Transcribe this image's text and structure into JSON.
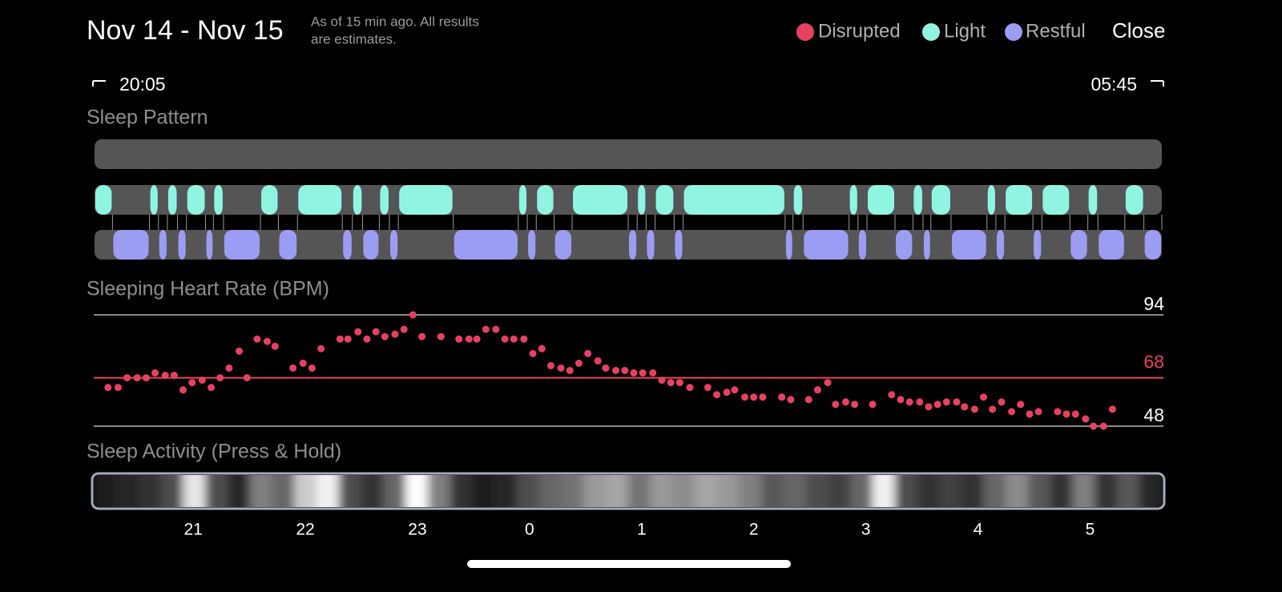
{
  "header": {
    "title": "Nov 14 - Nov 15",
    "note_lines": [
      "As of 15 min ago. All results",
      "are estimates."
    ],
    "close": "Close"
  },
  "range": {
    "start": "20:05",
    "end": "05:45"
  },
  "chart_data": [
    {
      "type": "timeline",
      "title": "Sleep Pattern",
      "xlim": [
        0.12,
        9.64
      ],
      "series": [
        {
          "name": "Disrupted",
          "color": "#e8415f",
          "intervals": []
        },
        {
          "name": "Light",
          "color": "#8ff5e0",
          "intervals": [
            [
              0.12,
              0.28
            ],
            [
              0.61,
              0.69
            ],
            [
              0.77,
              0.86
            ],
            [
              0.94,
              1.11
            ],
            [
              1.18,
              1.27
            ],
            [
              1.6,
              1.76
            ],
            [
              1.93,
              2.33
            ],
            [
              2.42,
              2.51
            ],
            [
              2.66,
              2.75
            ],
            [
              2.83,
              3.32
            ],
            [
              3.9,
              3.98
            ],
            [
              4.06,
              4.22
            ],
            [
              4.38,
              4.88
            ],
            [
              4.96,
              5.04
            ],
            [
              5.12,
              5.29
            ],
            [
              5.37,
              6.28
            ],
            [
              6.35,
              6.44
            ],
            [
              6.85,
              6.93
            ],
            [
              7.01,
              7.26
            ],
            [
              7.42,
              7.51
            ],
            [
              7.58,
              7.76
            ],
            [
              8.08,
              8.16
            ],
            [
              8.24,
              8.49
            ],
            [
              8.57,
              8.82
            ],
            [
              8.98,
              9.07
            ],
            [
              9.31,
              9.48
            ]
          ]
        },
        {
          "name": "Restful",
          "color": "#9b9df2",
          "intervals": [
            [
              0.28,
              0.61
            ],
            [
              0.69,
              0.77
            ],
            [
              0.86,
              0.94
            ],
            [
              1.11,
              1.18
            ],
            [
              1.27,
              1.6
            ],
            [
              1.76,
              1.93
            ],
            [
              2.33,
              2.42
            ],
            [
              2.51,
              2.66
            ],
            [
              2.75,
              2.83
            ],
            [
              3.32,
              3.9
            ],
            [
              3.98,
              4.06
            ],
            [
              4.22,
              4.38
            ],
            [
              4.88,
              4.96
            ],
            [
              5.04,
              5.12
            ],
            [
              5.29,
              5.37
            ],
            [
              6.28,
              6.35
            ],
            [
              6.44,
              6.85
            ],
            [
              6.93,
              7.01
            ],
            [
              7.26,
              7.42
            ],
            [
              7.51,
              7.58
            ],
            [
              7.76,
              8.08
            ],
            [
              8.16,
              8.24
            ],
            [
              8.49,
              8.57
            ],
            [
              8.82,
              8.98
            ],
            [
              9.07,
              9.31
            ],
            [
              9.48,
              9.64
            ]
          ]
        }
      ]
    },
    {
      "type": "scatter",
      "title": "Sleeping Heart Rate (BPM)",
      "color": "#e8415f",
      "xlim": [
        0.12,
        9.64
      ],
      "ylim": [
        48,
        94
      ],
      "yticks": [
        48,
        94
      ],
      "average": 68,
      "x": [
        0.24,
        0.33,
        0.41,
        0.5,
        0.58,
        0.66,
        0.75,
        0.83,
        0.91,
        0.99,
        1.08,
        1.16,
        1.24,
        1.32,
        1.41,
        1.48,
        1.57,
        1.66,
        1.73,
        1.89,
        1.98,
        2.06,
        2.14,
        2.31,
        2.38,
        2.47,
        2.55,
        2.63,
        2.71,
        2.8,
        2.88,
        2.96,
        3.04,
        3.21,
        3.37,
        3.46,
        3.53,
        3.61,
        3.7,
        3.78,
        3.86,
        3.95,
        4.03,
        4.11,
        4.19,
        4.28,
        4.36,
        4.44,
        4.52,
        4.61,
        4.68,
        4.77,
        4.85,
        4.93,
        5.01,
        5.1,
        5.18,
        5.26,
        5.34,
        5.43,
        5.59,
        5.67,
        5.76,
        5.83,
        5.92,
        6.0,
        6.08,
        6.25,
        6.33,
        6.49,
        6.57,
        6.66,
        6.73,
        6.82,
        6.9,
        7.06,
        7.23,
        7.31,
        7.39,
        7.48,
        7.56,
        7.64,
        7.72,
        7.81,
        7.88,
        7.97,
        8.05,
        8.13,
        8.21,
        8.3,
        8.38,
        8.46,
        8.54,
        8.71,
        8.79,
        8.87,
        8.96,
        9.03,
        9.12,
        9.2
      ],
      "values": [
        64,
        64,
        68,
        68,
        68,
        70,
        69,
        69,
        63,
        66,
        67,
        64,
        68,
        72,
        79,
        68,
        84,
        83,
        81,
        72,
        74,
        72,
        80,
        84,
        84,
        87,
        84,
        87,
        85,
        86,
        88,
        94,
        85,
        85,
        84,
        84,
        84,
        88,
        88,
        84,
        84,
        84,
        78,
        80,
        73,
        72,
        71,
        74,
        78,
        75,
        72,
        71,
        71,
        70,
        70,
        70,
        67,
        66,
        66,
        64,
        64,
        61,
        62,
        63,
        60,
        60,
        60,
        60,
        59,
        59,
        63,
        66,
        57,
        58,
        57,
        57,
        61,
        59,
        58,
        58,
        56,
        57,
        58,
        58,
        56,
        55,
        60,
        55,
        58,
        54,
        57,
        53,
        54,
        54,
        53,
        53,
        51,
        48,
        48,
        55
      ]
    },
    {
      "type": "heatmap",
      "title": "Sleep Activity (Press & Hold)",
      "xlim": [
        0.12,
        9.64
      ],
      "values": [
        0.1,
        0.15,
        0.2,
        0.3,
        0.9,
        0.3,
        0.15,
        0.5,
        0.4,
        0.8,
        0.95,
        0.3,
        0.2,
        0.4,
        1.0,
        0.5,
        0.2,
        0.1,
        0.15,
        0.3,
        0.4,
        0.45,
        0.6,
        0.65,
        0.45,
        0.6,
        0.55,
        0.65,
        0.6,
        0.5,
        0.35,
        0.4,
        0.3,
        0.25,
        0.4,
        0.95,
        0.3,
        0.2,
        0.25,
        0.2,
        0.4,
        0.55,
        0.35,
        0.2,
        0.5,
        0.2,
        0.35,
        0.15
      ],
      "xticks": [
        {
          "value": 1,
          "label": "21"
        },
        {
          "value": 2,
          "label": "22"
        },
        {
          "value": 3,
          "label": "23"
        },
        {
          "value": 4,
          "label": "0"
        },
        {
          "value": 5,
          "label": "1"
        },
        {
          "value": 6,
          "label": "2"
        },
        {
          "value": 7,
          "label": "3"
        },
        {
          "value": 8,
          "label": "4"
        },
        {
          "value": 9,
          "label": "5"
        }
      ]
    }
  ]
}
